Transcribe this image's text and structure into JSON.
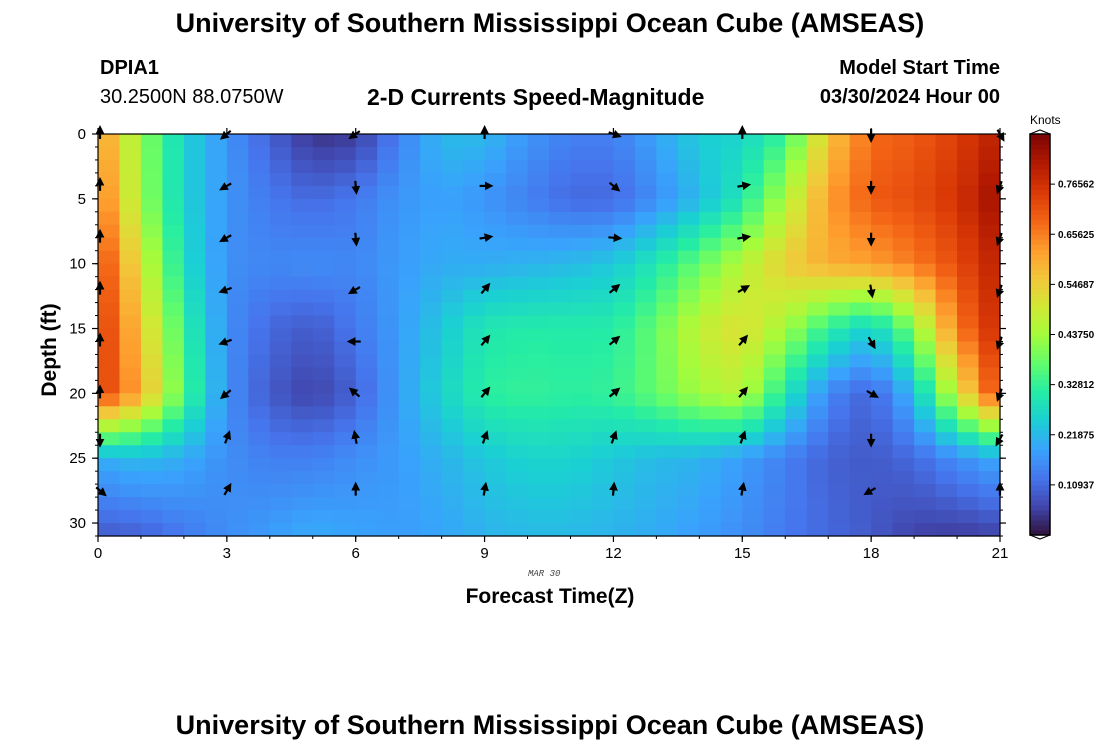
{
  "header": {
    "title": "University of Southern Mississippi Ocean Cube (AMSEAS)",
    "station_id": "DPIA1",
    "station_coords": "30.2500N  88.0750W",
    "subtitle": "2-D Currents Speed-Magnitude",
    "model_start_label": "Model Start Time",
    "model_start_value": "03/30/2024 Hour 00"
  },
  "footer": {
    "title": "University of Southern Mississippi Ocean Cube (AMSEAS)"
  },
  "colors": {
    "palette": [
      "#30123b",
      "#4145ab",
      "#4675ed",
      "#39a2fc",
      "#1bcfd4",
      "#24eca6",
      "#61fc6c",
      "#a4fc3b",
      "#d1e834",
      "#f3c63a",
      "#fe9b2d",
      "#f36315",
      "#d93806",
      "#b11901",
      "#7a0402"
    ]
  },
  "chart_data": {
    "type": "heatmap",
    "xlabel": "Forecast Time(Z)",
    "ylabel": "Depth (ft)",
    "date_label": "MAR 30",
    "xlim": [
      0,
      21
    ],
    "ylim": [
      0,
      31
    ],
    "xticks": [
      0,
      3,
      6,
      9,
      12,
      15,
      18,
      21
    ],
    "yticks": [
      0,
      5,
      10,
      15,
      20,
      25,
      30
    ],
    "colorbar": {
      "unit": "Knots",
      "min": 0,
      "max": 0.875,
      "tick_values": [
        0.10937,
        0.21875,
        0.32812,
        0.4375,
        0.54687,
        0.65625,
        0.76562
      ],
      "tick_labels": [
        "0.10937",
        "0.21875",
        "0.32812",
        "0.43750",
        "0.54687",
        "0.65625",
        "0.76562"
      ]
    },
    "speed_description": "Current speed magnitude (knots) by forecast hour and depth",
    "control_points": {
      "times": [
        0,
        1,
        2,
        3,
        4,
        5,
        6,
        7,
        8,
        9,
        10,
        11,
        12,
        13,
        14,
        15,
        16,
        17,
        18,
        19,
        20,
        21
      ],
      "depths": [
        0,
        5,
        10,
        15,
        20,
        25,
        31
      ],
      "speed": [
        [
          0.64,
          0.42,
          0.26,
          0.17,
          0.1,
          0.04,
          0.05,
          0.14,
          0.22,
          0.22,
          0.17,
          0.14,
          0.14,
          0.19,
          0.25,
          0.26,
          0.33,
          0.56,
          0.68,
          0.7,
          0.74,
          0.8
        ],
        [
          0.68,
          0.43,
          0.26,
          0.17,
          0.13,
          0.11,
          0.13,
          0.17,
          0.19,
          0.17,
          0.14,
          0.11,
          0.11,
          0.16,
          0.22,
          0.3,
          0.45,
          0.62,
          0.7,
          0.72,
          0.76,
          0.84
        ],
        [
          0.74,
          0.5,
          0.28,
          0.16,
          0.15,
          0.16,
          0.15,
          0.18,
          0.2,
          0.2,
          0.21,
          0.22,
          0.24,
          0.3,
          0.38,
          0.46,
          0.55,
          0.6,
          0.62,
          0.66,
          0.72,
          0.8
        ],
        [
          0.76,
          0.56,
          0.33,
          0.16,
          0.11,
          0.09,
          0.13,
          0.18,
          0.24,
          0.3,
          0.31,
          0.31,
          0.31,
          0.38,
          0.48,
          0.52,
          0.44,
          0.32,
          0.25,
          0.4,
          0.66,
          0.78
        ],
        [
          0.75,
          0.6,
          0.36,
          0.16,
          0.09,
          0.06,
          0.1,
          0.18,
          0.26,
          0.32,
          0.33,
          0.32,
          0.33,
          0.38,
          0.44,
          0.47,
          0.3,
          0.15,
          0.1,
          0.22,
          0.5,
          0.74
        ],
        [
          0.2,
          0.22,
          0.2,
          0.16,
          0.14,
          0.14,
          0.16,
          0.18,
          0.21,
          0.24,
          0.26,
          0.26,
          0.24,
          0.22,
          0.21,
          0.18,
          0.14,
          0.1,
          0.09,
          0.11,
          0.16,
          0.2
        ],
        [
          0.09,
          0.1,
          0.13,
          0.16,
          0.18,
          0.2,
          0.19,
          0.18,
          0.19,
          0.21,
          0.22,
          0.22,
          0.21,
          0.2,
          0.18,
          0.16,
          0.13,
          0.11,
          0.09,
          0.06,
          0.05,
          0.06
        ]
      ]
    },
    "vectors": {
      "times": [
        0,
        3,
        6,
        9,
        12,
        15,
        18,
        21
      ],
      "depths": [
        0,
        4,
        8,
        12,
        16,
        20,
        23.5,
        27.5
      ],
      "directions_deg": [
        [
          0,
          230,
          235,
          0,
          110,
          0,
          180,
          150
        ],
        [
          0,
          240,
          175,
          90,
          130,
          80,
          180,
          200
        ],
        [
          0,
          240,
          175,
          80,
          95,
          80,
          180,
          200
        ],
        [
          0,
          250,
          240,
          40,
          50,
          60,
          170,
          200
        ],
        [
          0,
          250,
          270,
          40,
          50,
          40,
          150,
          200
        ],
        [
          0,
          230,
          310,
          40,
          50,
          40,
          120,
          200
        ],
        [
          180,
          20,
          350,
          20,
          20,
          20,
          180,
          210
        ],
        [
          130,
          30,
          0,
          10,
          5,
          10,
          240,
          0
        ]
      ]
    }
  }
}
